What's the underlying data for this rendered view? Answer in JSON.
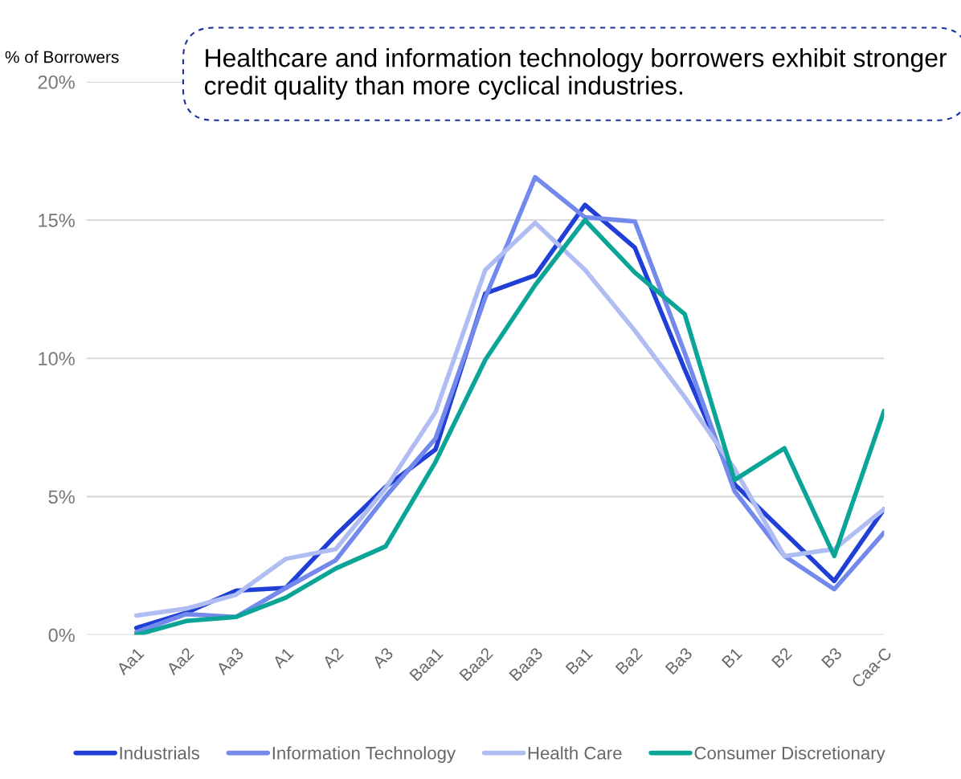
{
  "chart_data": {
    "type": "line",
    "ylabel": "% of Borrowers",
    "annotations": [
      "Healthcare and information technology borrowers exhibit stronger credit quality than more cyclical industries."
    ],
    "categories": [
      "Aa1",
      "Aa2",
      "Aa3",
      "A1",
      "A2",
      "A3",
      "Baa1",
      "Baa2",
      "Baa3",
      "Ba1",
      "Ba2",
      "Ba3",
      "B1",
      "B2",
      "B3",
      "Caa-C"
    ],
    "series": [
      {
        "name": "Industrials",
        "color": "#1f3fd6",
        "values": [
          0.25,
          0.8,
          1.6,
          1.7,
          3.6,
          5.35,
          6.7,
          12.35,
          13.0,
          15.55,
          14.0,
          9.6,
          5.45,
          3.7,
          1.95,
          4.55
        ]
      },
      {
        "name": "Information Technology",
        "color": "#7389ec",
        "values": [
          0.1,
          0.75,
          0.65,
          1.7,
          2.7,
          5.0,
          7.1,
          12.2,
          16.55,
          15.1,
          14.95,
          10.2,
          5.2,
          2.85,
          1.65,
          3.7
        ]
      },
      {
        "name": "Health Care",
        "color": "#b0bdf2",
        "values": [
          0.7,
          0.95,
          1.45,
          2.75,
          3.1,
          5.3,
          8.05,
          13.2,
          14.9,
          13.2,
          11.0,
          8.6,
          6.0,
          2.85,
          3.1,
          4.55
        ]
      },
      {
        "name": "Consumer Discretionary",
        "color": "#0aa596",
        "values": [
          0.0,
          0.5,
          0.65,
          1.35,
          2.4,
          3.2,
          6.25,
          9.95,
          12.65,
          15.0,
          13.1,
          11.6,
          5.6,
          6.75,
          2.85,
          8.1
        ]
      }
    ],
    "ylim": [
      0,
      20
    ],
    "yticks": [
      {
        "value": 0,
        "label": "0%"
      },
      {
        "value": 5,
        "label": "5%"
      },
      {
        "value": 10,
        "label": "10%"
      },
      {
        "value": 15,
        "label": "15%"
      },
      {
        "value": 20,
        "label": "20%"
      }
    ],
    "grid": "y",
    "legend": "bottom",
    "marker": "none",
    "line_style": "solid"
  }
}
